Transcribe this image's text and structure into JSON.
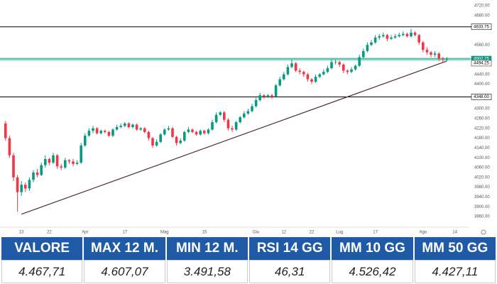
{
  "chart_data": {
    "type": "candlestick",
    "categories": [
      null,
      null,
      null,
      null,
      "13",
      null,
      null,
      null,
      null,
      null,
      null,
      "22",
      null,
      null,
      null,
      null,
      null,
      null,
      null,
      null,
      "Apr",
      null,
      null,
      null,
      null,
      null,
      null,
      null,
      null,
      null,
      "17",
      null,
      null,
      null,
      null,
      null,
      null,
      null,
      null,
      null,
      "Mag",
      null,
      null,
      null,
      null,
      null,
      null,
      null,
      null,
      null,
      "15",
      null,
      null,
      null,
      null,
      null,
      null,
      null,
      null,
      null,
      null,
      null,
      null,
      "Giu",
      null,
      null,
      null,
      null,
      null,
      null,
      "12",
      null,
      null,
      null,
      null,
      null,
      null,
      "22",
      null,
      null,
      null,
      null,
      null,
      null,
      "Lug",
      null,
      null,
      null,
      null,
      null,
      null,
      null,
      null,
      "17",
      null,
      null,
      null,
      null,
      null,
      null,
      null,
      null,
      null,
      null,
      null,
      "Ago",
      null,
      null,
      null,
      null,
      null,
      null,
      null,
      "14"
    ],
    "open": [
      4240,
      4180,
      4110,
      4020,
      3960,
      3990,
      3975,
      4010,
      4040,
      4030,
      4070,
      4095,
      4080,
      4110,
      4065,
      4060,
      4090,
      4085,
      4075,
      4080,
      4150,
      4190,
      4210,
      4220,
      4200,
      4210,
      4205,
      4190,
      4215,
      4225,
      4230,
      4240,
      4225,
      4235,
      4215,
      4220,
      4205,
      4180,
      4150,
      4165,
      4195,
      4215,
      4220,
      4185,
      4160,
      4170,
      4205,
      4215,
      4205,
      4195,
      4210,
      4200,
      4215,
      4245,
      4275,
      4285,
      4255,
      4220,
      4215,
      4245,
      4265,
      4280,
      4290,
      4310,
      4335,
      4355,
      4350,
      4355,
      4350,
      4395,
      4420,
      4440,
      4470,
      4485,
      4455,
      4450,
      4440,
      4420,
      4410,
      4430,
      4440,
      4450,
      4465,
      4490,
      4490,
      4480,
      4455,
      4450,
      4460,
      4475,
      4510,
      4535,
      4560,
      4570,
      4590,
      4595,
      4600,
      4585,
      4590,
      4595,
      4600,
      4605,
      4595,
      4610,
      4600,
      4570,
      4540,
      4530,
      4520,
      4525,
      4505,
      4500,
      null,
      null
    ],
    "high": [
      4250,
      4190,
      4120,
      4030,
      4005,
      4000,
      4020,
      4050,
      4055,
      4080,
      4110,
      4100,
      4120,
      4115,
      4075,
      4100,
      4095,
      4095,
      4090,
      4160,
      4200,
      4220,
      4230,
      4225,
      4215,
      4215,
      4210,
      4220,
      4235,
      4240,
      4245,
      4245,
      4240,
      4240,
      4225,
      4225,
      4210,
      4185,
      4175,
      4200,
      4220,
      4230,
      4225,
      4190,
      4180,
      4210,
      4225,
      4220,
      4210,
      4215,
      4215,
      4220,
      4255,
      4285,
      4290,
      4290,
      4260,
      4230,
      4250,
      4270,
      4290,
      4300,
      4320,
      4345,
      4365,
      4360,
      4360,
      4360,
      4400,
      4430,
      4450,
      4480,
      4500,
      4490,
      4465,
      4455,
      4445,
      4425,
      4440,
      4445,
      4460,
      4475,
      4500,
      4500,
      4495,
      4485,
      4460,
      4470,
      4480,
      4520,
      4545,
      4570,
      4580,
      4600,
      4605,
      4610,
      4605,
      4600,
      4605,
      4610,
      4615,
      4610,
      4625,
      4615,
      4605,
      4575,
      4550,
      4535,
      4535,
      4530,
      4510,
      4510,
      null,
      null
    ],
    "low": [
      4170,
      4100,
      4005,
      3880,
      3945,
      3960,
      3965,
      4000,
      4020,
      4025,
      4060,
      4070,
      4075,
      4055,
      4050,
      4055,
      4075,
      4065,
      4070,
      4075,
      4145,
      4185,
      4200,
      4195,
      4195,
      4200,
      4185,
      4185,
      4210,
      4220,
      4225,
      4220,
      4220,
      4210,
      4210,
      4200,
      4170,
      4140,
      4145,
      4160,
      4190,
      4210,
      4180,
      4150,
      4155,
      4165,
      4200,
      4200,
      4190,
      4190,
      4195,
      4195,
      4210,
      4240,
      4270,
      4245,
      4210,
      4205,
      4210,
      4240,
      4260,
      4275,
      4285,
      4305,
      4330,
      4340,
      4345,
      4340,
      4345,
      4390,
      4415,
      4435,
      4465,
      4450,
      4440,
      4430,
      4410,
      4400,
      4405,
      4425,
      4435,
      4445,
      4460,
      4480,
      4470,
      4445,
      4440,
      4445,
      4455,
      4470,
      4505,
      4530,
      4555,
      4565,
      4580,
      4590,
      4575,
      4580,
      4585,
      4590,
      4595,
      4590,
      4590,
      4595,
      4560,
      4530,
      4520,
      4510,
      4510,
      4495,
      4490,
      4495,
      null,
      null
    ],
    "close": [
      4180,
      4110,
      4020,
      3960,
      3990,
      3975,
      4010,
      4040,
      4030,
      4070,
      4095,
      4080,
      4110,
      4065,
      4060,
      4090,
      4085,
      4075,
      4080,
      4150,
      4190,
      4210,
      4220,
      4200,
      4210,
      4205,
      4190,
      4215,
      4225,
      4230,
      4240,
      4225,
      4235,
      4215,
      4220,
      4205,
      4180,
      4150,
      4165,
      4195,
      4215,
      4220,
      4185,
      4160,
      4170,
      4205,
      4215,
      4205,
      4195,
      4210,
      4200,
      4215,
      4245,
      4275,
      4285,
      4255,
      4220,
      4215,
      4245,
      4265,
      4280,
      4290,
      4310,
      4335,
      4355,
      4350,
      4355,
      4350,
      4395,
      4420,
      4440,
      4470,
      4485,
      4455,
      4450,
      4440,
      4420,
      4410,
      4430,
      4440,
      4450,
      4465,
      4490,
      4490,
      4480,
      4455,
      4450,
      4460,
      4475,
      4510,
      4535,
      4560,
      4570,
      4590,
      4595,
      4600,
      4585,
      4590,
      4595,
      4600,
      4605,
      4595,
      4610,
      4600,
      4570,
      4540,
      4530,
      4520,
      4525,
      4505,
      4500,
      4502.75,
      null,
      null
    ],
    "up_color": "#089981",
    "down_color": "#f23645",
    "ylim": [
      3817,
      4743
    ],
    "yticks": [
      {
        "value": 4720,
        "label": "4720.00"
      },
      {
        "value": 4680,
        "label": "4680.00"
      },
      {
        "value": 4560,
        "label": "4560.00"
      },
      {
        "value": 4440,
        "label": "4440.00"
      },
      {
        "value": 4400,
        "label": "4400.00"
      },
      {
        "value": 4300,
        "label": "4300.00"
      },
      {
        "value": 4260,
        "label": "4260.00"
      },
      {
        "value": 4220,
        "label": "4220.00"
      },
      {
        "value": 4180,
        "label": "4180.00"
      },
      {
        "value": 4140,
        "label": "4140.00"
      },
      {
        "value": 4100,
        "label": "4100.00"
      },
      {
        "value": 4060,
        "label": "4060.00"
      },
      {
        "value": 4020,
        "label": "4020.00"
      },
      {
        "value": 3980,
        "label": "3980.00"
      },
      {
        "value": 3940,
        "label": "3940.00"
      },
      {
        "value": 3900,
        "label": "3900.00"
      },
      {
        "value": 3860,
        "label": "3860.00"
      }
    ],
    "grid": false,
    "hlines": [
      {
        "value": 4633.75,
        "label": "4633.75",
        "color": "#000000"
      },
      {
        "value": 4502.75,
        "label": "4502.75",
        "color": "#089981"
      },
      {
        "value": 4348,
        "label": "4348.00",
        "color": "#000000"
      }
    ],
    "trendline": {
      "x": [
        4,
        111
      ],
      "y": [
        3870,
        4494.25
      ],
      "end_label": "4494.25",
      "color": "#4a2f2f"
    }
  },
  "table": {
    "header": [
      "VALORE",
      "MAX 12 M.",
      "MIN 12 M.",
      "RSI 14 GG",
      "MM 10 GG",
      "MM 50 GG"
    ],
    "rows": [
      [
        "4.467,71",
        "4.607,07",
        "3.491,58",
        "46,31",
        "4.526,42",
        "4.427,11"
      ]
    ]
  }
}
